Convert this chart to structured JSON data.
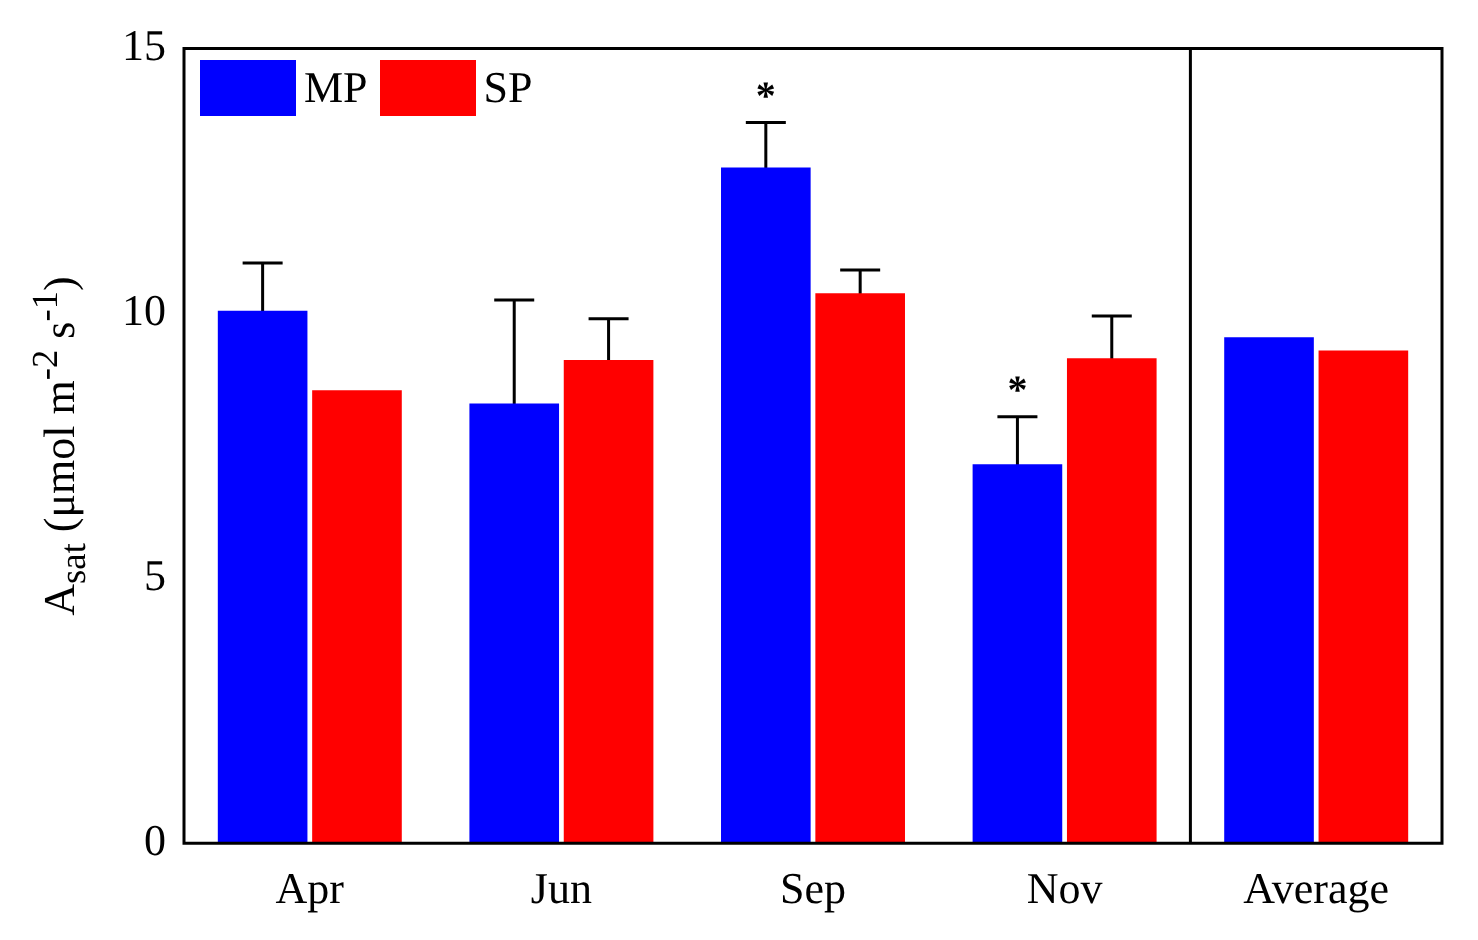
{
  "chart_data": {
    "type": "bar",
    "ylabel": "A$_{sat}$ (μmol m$^{-2}$ s$^{-1}$)",
    "categories": [
      "Apr",
      "Jun",
      "Sep",
      "Nov",
      "Average"
    ],
    "series": [
      {
        "name": "MP",
        "color": "#0000ff",
        "values": [
          10.05,
          8.3,
          12.75,
          7.15,
          9.55
        ],
        "errors": [
          0.9,
          1.95,
          0.85,
          0.9,
          null
        ]
      },
      {
        "name": "SP",
        "color": "#ff0000",
        "values": [
          8.55,
          9.12,
          10.38,
          9.15,
          9.3
        ],
        "errors": [
          null,
          0.78,
          0.44,
          0.8,
          null
        ]
      }
    ],
    "ylim": [
      0,
      15
    ],
    "yticks": [
      0,
      5,
      10,
      15
    ],
    "grid": false,
    "legend": "top left",
    "annotations": [
      {
        "text": "*",
        "x": "Sep",
        "y": 12.75
      },
      {
        "text": "*",
        "x": "Nov",
        "y": 7.15
      }
    ]
  }
}
